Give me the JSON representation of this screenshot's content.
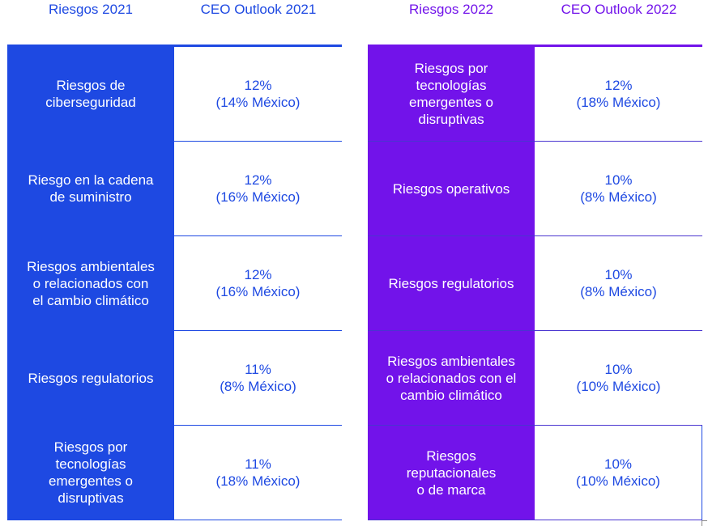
{
  "panel_2021": {
    "header_risk": "Riesgos 2021",
    "header_outlook": "CEO Outlook 2021",
    "rows": [
      {
        "risk": "Riesgos de\nciberseguridad",
        "pct": "12%",
        "mx": "(14% México)"
      },
      {
        "risk": "Riesgo en la cadena\nde suministro",
        "pct": "12%",
        "mx": "(16% México)"
      },
      {
        "risk": "Riesgos ambientales\no relacionados con\nel cambio climático",
        "pct": "12%",
        "mx": "(16% México)"
      },
      {
        "risk": "Riesgos regulatorios",
        "pct": "11%",
        "mx": "(8% México)"
      },
      {
        "risk": "Riesgos por\ntecnologías\nemergentes o\ndisruptivas",
        "pct": "11%",
        "mx": "(18% México)"
      }
    ]
  },
  "panel_2022": {
    "header_risk": "Riesgos 2022",
    "header_outlook": "CEO Outlook 2022",
    "rows": [
      {
        "risk": "Riesgos por\ntecnologías\nemergentes o\ndisruptivas",
        "pct": "12%",
        "mx": "(18% México)"
      },
      {
        "risk": "Riesgos operativos",
        "pct": "10%",
        "mx": "(8% México)"
      },
      {
        "risk": "Riesgos regulatorios",
        "pct": "10%",
        "mx": "(8% México)"
      },
      {
        "risk": "Riesgos ambientales\no relacionados con el\ncambio climático",
        "pct": "10%",
        "mx": "(10% México)"
      },
      {
        "risk": "Riesgos\nreputacionales\no de marca",
        "pct": "10%",
        "mx": "(10% México)"
      }
    ]
  },
  "colors": {
    "blue": "#1e49e2",
    "purple": "#7213ea"
  }
}
